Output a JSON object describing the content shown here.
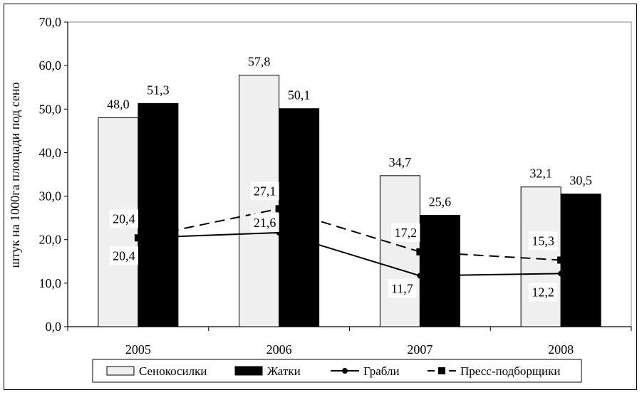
{
  "chart_data": {
    "type": "bar",
    "categories": [
      "2005",
      "2006",
      "2007",
      "2008"
    ],
    "series": [
      {
        "name": "Сенокосилки",
        "kind": "bar",
        "color": "#f0f0f0",
        "values": [
          48.0,
          57.8,
          34.7,
          32.1
        ],
        "labels": [
          "48,0",
          "57,8",
          "34,7",
          "32,1"
        ]
      },
      {
        "name": "Жатки",
        "kind": "bar",
        "color": "#000000",
        "values": [
          51.3,
          50.1,
          25.6,
          30.5
        ],
        "labels": [
          "51,3",
          "50,1",
          "25,6",
          "30,5"
        ]
      },
      {
        "name": "Грабли",
        "kind": "line",
        "dash": "solid",
        "marker": "circle",
        "color": "#000000",
        "values": [
          20.4,
          21.6,
          11.7,
          12.2
        ],
        "labels": [
          "20,4",
          "21,6",
          "11,7",
          "12,2"
        ]
      },
      {
        "name": "Пресс-подборщики",
        "kind": "line",
        "dash": "dashed",
        "marker": "square",
        "color": "#000000",
        "values": [
          20.4,
          27.1,
          17.2,
          15.3
        ],
        "labels": [
          "20,4",
          "27,1",
          "17,2",
          "15,3"
        ]
      }
    ],
    "ylabel": "штук на 1000га площади под сено",
    "xlabel": "",
    "ylim": [
      0,
      70
    ],
    "yticks": [
      "0,0",
      "10,0",
      "20,0",
      "30,0",
      "40,0",
      "50,0",
      "60,0",
      "70,0"
    ],
    "grid": false,
    "legend_position": "bottom"
  }
}
